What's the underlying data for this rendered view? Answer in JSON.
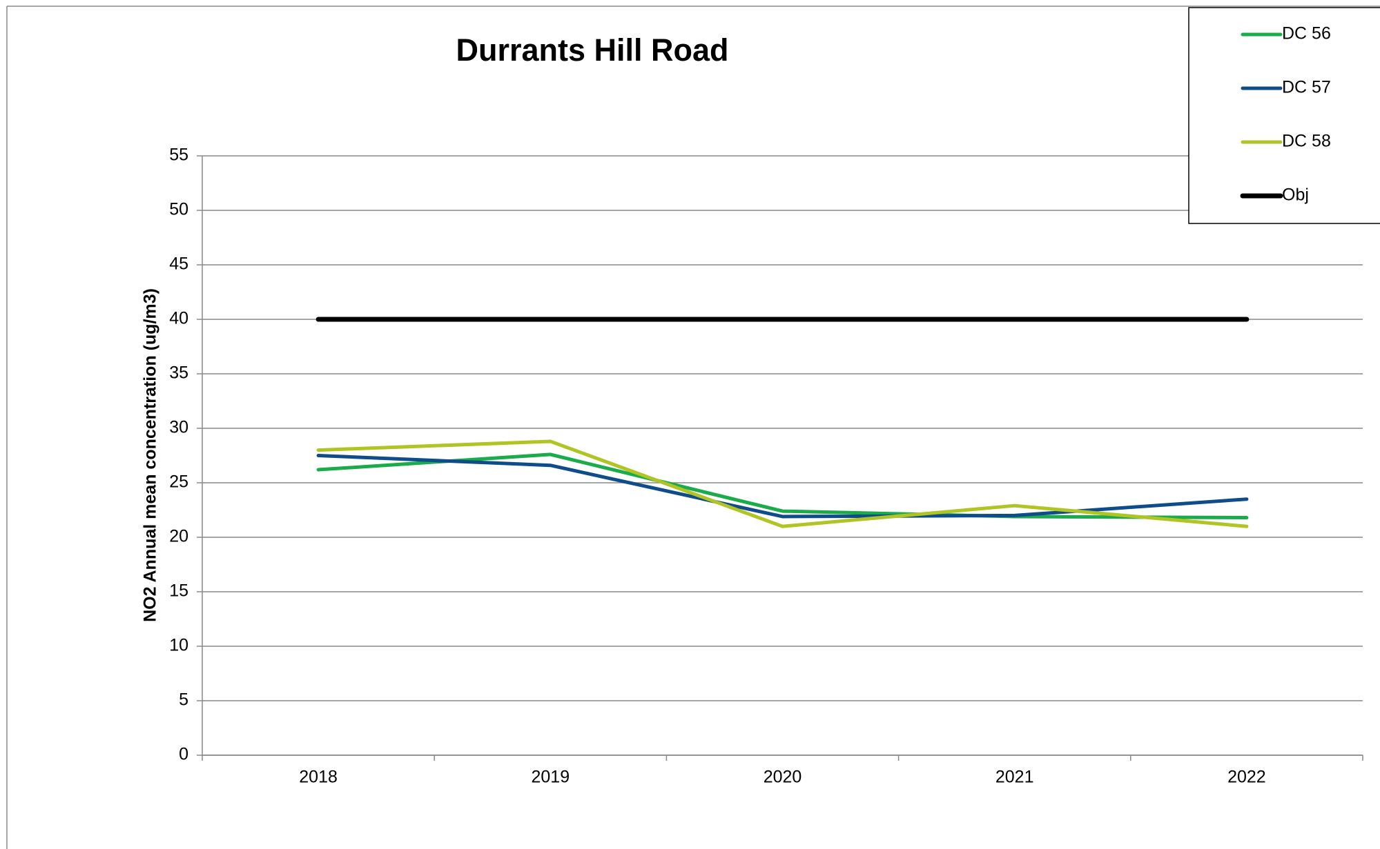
{
  "chart_data": {
    "type": "line",
    "title": "Durrants Hill Road",
    "y_label": "NO2 Annual mean concentration (ug/m3)",
    "categories": [
      "2018",
      "2019",
      "2020",
      "2021",
      "2022"
    ],
    "series": [
      {
        "name": "DC 56",
        "color": "#1aab4a",
        "values": [
          26.2,
          27.6,
          22.4,
          21.9,
          21.8
        ]
      },
      {
        "name": "DC 57",
        "color": "#0f4c8a",
        "values": [
          27.5,
          26.6,
          21.9,
          22.0,
          23.5
        ]
      },
      {
        "name": "DC 58",
        "color": "#b0c424",
        "values": [
          28.0,
          28.8,
          21.0,
          22.9,
          21.0
        ]
      },
      {
        "name": "Obj",
        "color": "#000000",
        "values": [
          40,
          40,
          40,
          40,
          40
        ]
      }
    ],
    "ylim": [
      0,
      55
    ],
    "yticks": [
      0,
      5,
      10,
      15,
      20,
      25,
      30,
      35,
      40,
      45,
      50,
      55
    ],
    "grid": true,
    "legend": "upper right"
  }
}
